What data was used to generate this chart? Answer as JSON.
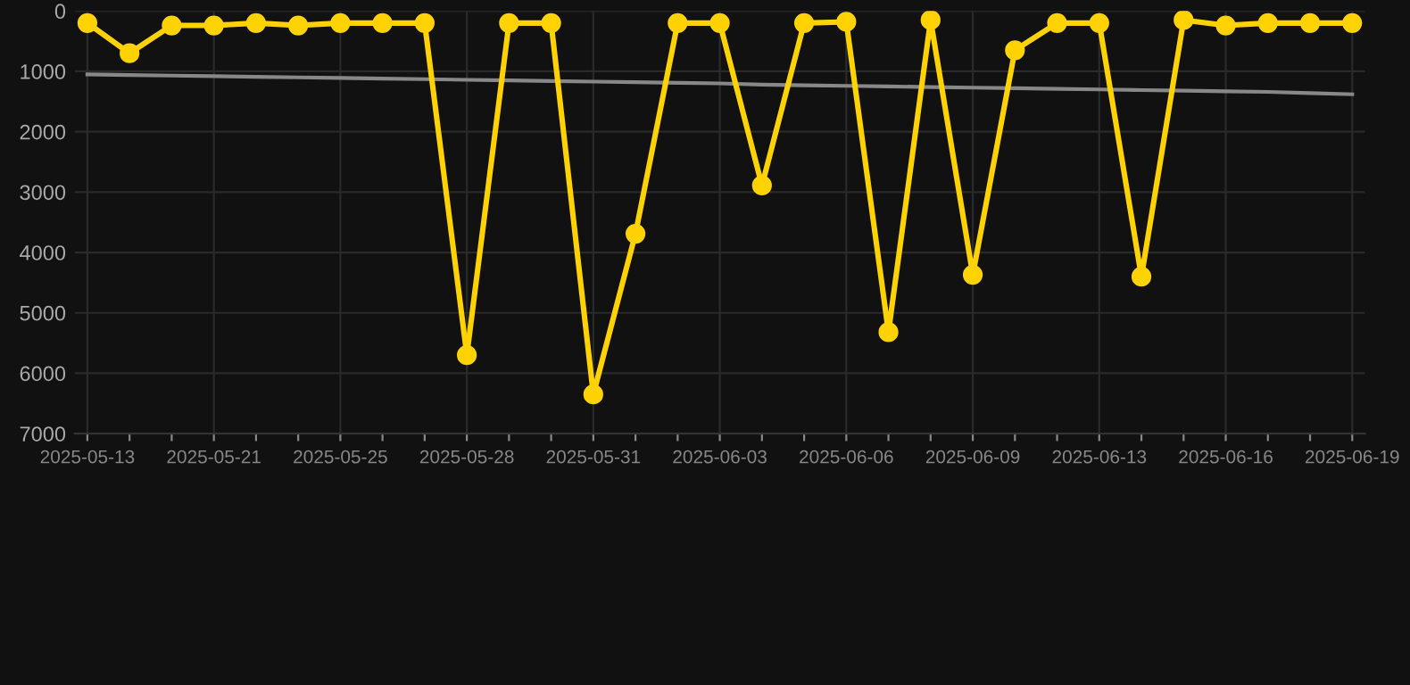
{
  "chart_data": {
    "type": "line",
    "categories": [
      "2025-05-13",
      null,
      null,
      "2025-05-21",
      null,
      null,
      "2025-05-25",
      null,
      null,
      "2025-05-28",
      null,
      null,
      "2025-05-31",
      null,
      null,
      "2025-06-03",
      null,
      null,
      "2025-06-06",
      null,
      null,
      "2025-06-09",
      null,
      null,
      "2025-06-13",
      null,
      null,
      "2025-06-16",
      null,
      null,
      "2025-06-19"
    ],
    "series": [
      {
        "color": "#ffd200",
        "marker": "circle",
        "values": [
          200,
          700,
          240,
          240,
          200,
          240,
          200,
          200,
          200,
          5700,
          200,
          200,
          6350,
          3690,
          200,
          200,
          2890,
          200,
          180,
          5320,
          150,
          4370,
          650,
          200,
          200,
          4400,
          150,
          240,
          200,
          200,
          200
        ]
      },
      {
        "type": "line",
        "color": "#888888",
        "marker": "none",
        "values": [
          1050,
          1060,
          1070,
          1080,
          1090,
          1100,
          1110,
          1120,
          1130,
          1140,
          1150,
          1160,
          1170,
          1180,
          1190,
          1200,
          1220,
          1230,
          1240,
          1250,
          1260,
          1270,
          1280,
          1290,
          1300,
          1310,
          1320,
          1330,
          1340,
          1360,
          1380
        ]
      }
    ],
    "ylim": [
      7000,
      0
    ],
    "yticks": [
      0,
      1000,
      2000,
      3000,
      4000,
      5000,
      6000,
      7000
    ],
    "grid": true
  }
}
